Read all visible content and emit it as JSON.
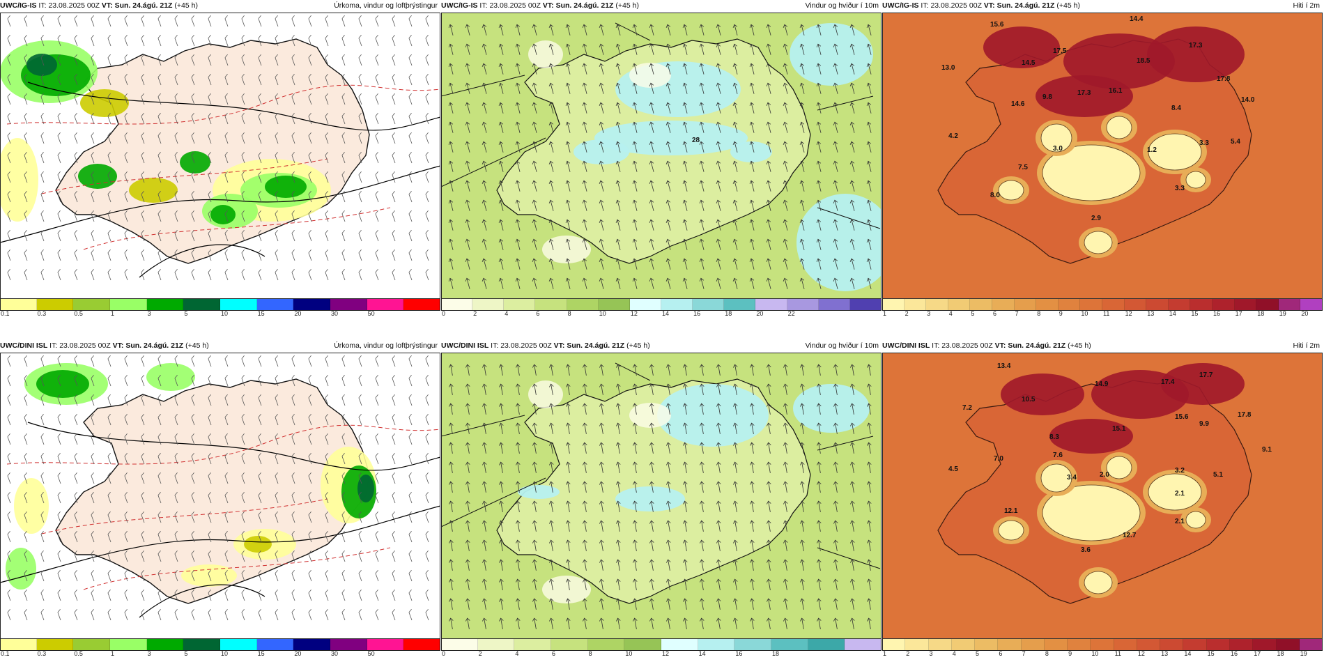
{
  "panels": [
    {
      "id": "p1",
      "model": "UWC/IG-IS",
      "it_label": "IT:",
      "it": "23.08.2025 00Z",
      "vt_label": "VT:",
      "vt": "Sun. 24.ágú. 21Z",
      "lead": "(+45 h)",
      "title": "Úrkoma, vindur og loftþrýstingur",
      "type": "precip",
      "ticks": [
        "0.1",
        "0.3",
        "0.5",
        "1",
        "3",
        "5",
        "10",
        "15",
        "20",
        "30",
        "50"
      ],
      "colors": [
        "#ffff99",
        "#cccc00",
        "#99cc33",
        "#99ff66",
        "#00aa00",
        "#006633",
        "#00ffff",
        "#3366ff",
        "#000080",
        "#800080",
        "#ff1493",
        "#ff0000"
      ],
      "labels": []
    },
    {
      "id": "p2",
      "model": "UWC/IG-IS",
      "it_label": "IT:",
      "it": "23.08.2025 00Z",
      "vt_label": "VT:",
      "vt": "Sun. 24.ágú. 21Z",
      "lead": "(+45 h)",
      "title": "Vindur og hviður í 10m",
      "type": "wind",
      "ticks": [
        "0",
        "2",
        "4",
        "6",
        "8",
        "10",
        "12",
        "14",
        "16",
        "18",
        "20",
        "22"
      ],
      "colors": [
        "#fcfde8",
        "#eef6c6",
        "#dceea0",
        "#c6e27e",
        "#aed464",
        "#96c456",
        "#e0ffff",
        "#b6f0f0",
        "#8ad8d8",
        "#5cc0c0",
        "#c8b8f0",
        "#a898e0",
        "#8070d0",
        "#5040b0"
      ],
      "labels": [
        "28"
      ]
    },
    {
      "id": "p3",
      "model": "UWC/IG-IS",
      "it_label": "IT:",
      "it": "23.08.2025 00Z",
      "vt_label": "VT:",
      "vt": "Sun. 24.ágú. 21Z",
      "lead": "(+45 h)",
      "title": "Hiti í 2m",
      "type": "temp",
      "ticks": [
        "1",
        "2",
        "3",
        "4",
        "5",
        "6",
        "7",
        "8",
        "9",
        "10",
        "11",
        "12",
        "13",
        "14",
        "15",
        "16",
        "17",
        "18",
        "19",
        "20"
      ],
      "colors": [
        "#fff5b0",
        "#fbe79a",
        "#f6d987",
        "#f1cb74",
        "#ecbc64",
        "#e8ad57",
        "#e59e4c",
        "#e39043",
        "#e0823e",
        "#dd7439",
        "#d96636",
        "#d35834",
        "#cc4a32",
        "#c43c30",
        "#ba2e2e",
        "#ae222c",
        "#a0182a",
        "#901028",
        "#a0287a",
        "#b040c0"
      ],
      "labels": [
        "14.4",
        "15.6",
        "17.5",
        "17.3",
        "18.5",
        "13.0",
        "14.5",
        "17.8",
        "17.3",
        "16.1",
        "9.8",
        "14.6",
        "14.0",
        "8.4",
        "4.2",
        "3.0",
        "1.2",
        "3.3",
        "5.4",
        "7.5",
        "3.3",
        "8.0",
        "2.9"
      ]
    },
    {
      "id": "p4",
      "model": "UWC/DINI ISL",
      "it_label": "IT:",
      "it": "23.08.2025 00Z",
      "vt_label": "VT:",
      "vt": "Sun. 24.ágú. 21Z",
      "lead": "(+45 h)",
      "title": "Úrkoma, vindur og loftþrýstingur",
      "type": "precip",
      "ticks": [
        "0.1",
        "0.3",
        "0.5",
        "1",
        "3",
        "5",
        "10",
        "15",
        "20",
        "30",
        "50"
      ],
      "colors": [
        "#ffff99",
        "#cccc00",
        "#99cc33",
        "#99ff66",
        "#00aa00",
        "#006633",
        "#00ffff",
        "#3366ff",
        "#000080",
        "#800080",
        "#ff1493",
        "#ff0000"
      ],
      "labels": []
    },
    {
      "id": "p5",
      "model": "UWC/DINI ISL",
      "it_label": "IT:",
      "it": "23.08.2025 00Z",
      "vt_label": "VT:",
      "vt": "Sun. 24.ágú. 21Z",
      "lead": "(+45 h)",
      "title": "Vindur og hviður í 10m",
      "type": "wind",
      "ticks": [
        "0",
        "2",
        "4",
        "6",
        "8",
        "10",
        "12",
        "14",
        "16",
        "18"
      ],
      "colors": [
        "#fcfde8",
        "#eef6c6",
        "#dceea0",
        "#c6e27e",
        "#aed464",
        "#96c456",
        "#e0ffff",
        "#b6f0f0",
        "#8ad8d8",
        "#5cc0c0",
        "#3ca8a8",
        "#c8b8f0"
      ],
      "labels": []
    },
    {
      "id": "p6",
      "model": "UWC/DINI ISL",
      "it_label": "IT:",
      "it": "23.08.2025 00Z",
      "vt_label": "VT:",
      "vt": "Sun. 24.ágú. 21Z",
      "lead": "(+45 h)",
      "title": "Hiti í 2m",
      "type": "temp",
      "ticks": [
        "1",
        "2",
        "3",
        "4",
        "5",
        "6",
        "7",
        "8",
        "9",
        "10",
        "11",
        "12",
        "13",
        "14",
        "15",
        "16",
        "17",
        "18",
        "19"
      ],
      "colors": [
        "#fff5b0",
        "#fbe79a",
        "#f6d987",
        "#f1cb74",
        "#ecbc64",
        "#e8ad57",
        "#e59e4c",
        "#e39043",
        "#e0823e",
        "#dd7439",
        "#d96636",
        "#d35834",
        "#cc4a32",
        "#c43c30",
        "#ba2e2e",
        "#ae222c",
        "#a0182a",
        "#901028",
        "#a0287a"
      ],
      "labels": [
        "13.4",
        "17.7",
        "14.9",
        "17.4",
        "10.5",
        "15.6",
        "7.2",
        "17.8",
        "15.1",
        "9.9",
        "8.3",
        "9.1",
        "7.6",
        "7.0",
        "4.5",
        "3.4",
        "2.0",
        "3.2",
        "5.1",
        "2.1",
        "12.1",
        "2.1",
        "12.7",
        "3.6"
      ]
    }
  ]
}
